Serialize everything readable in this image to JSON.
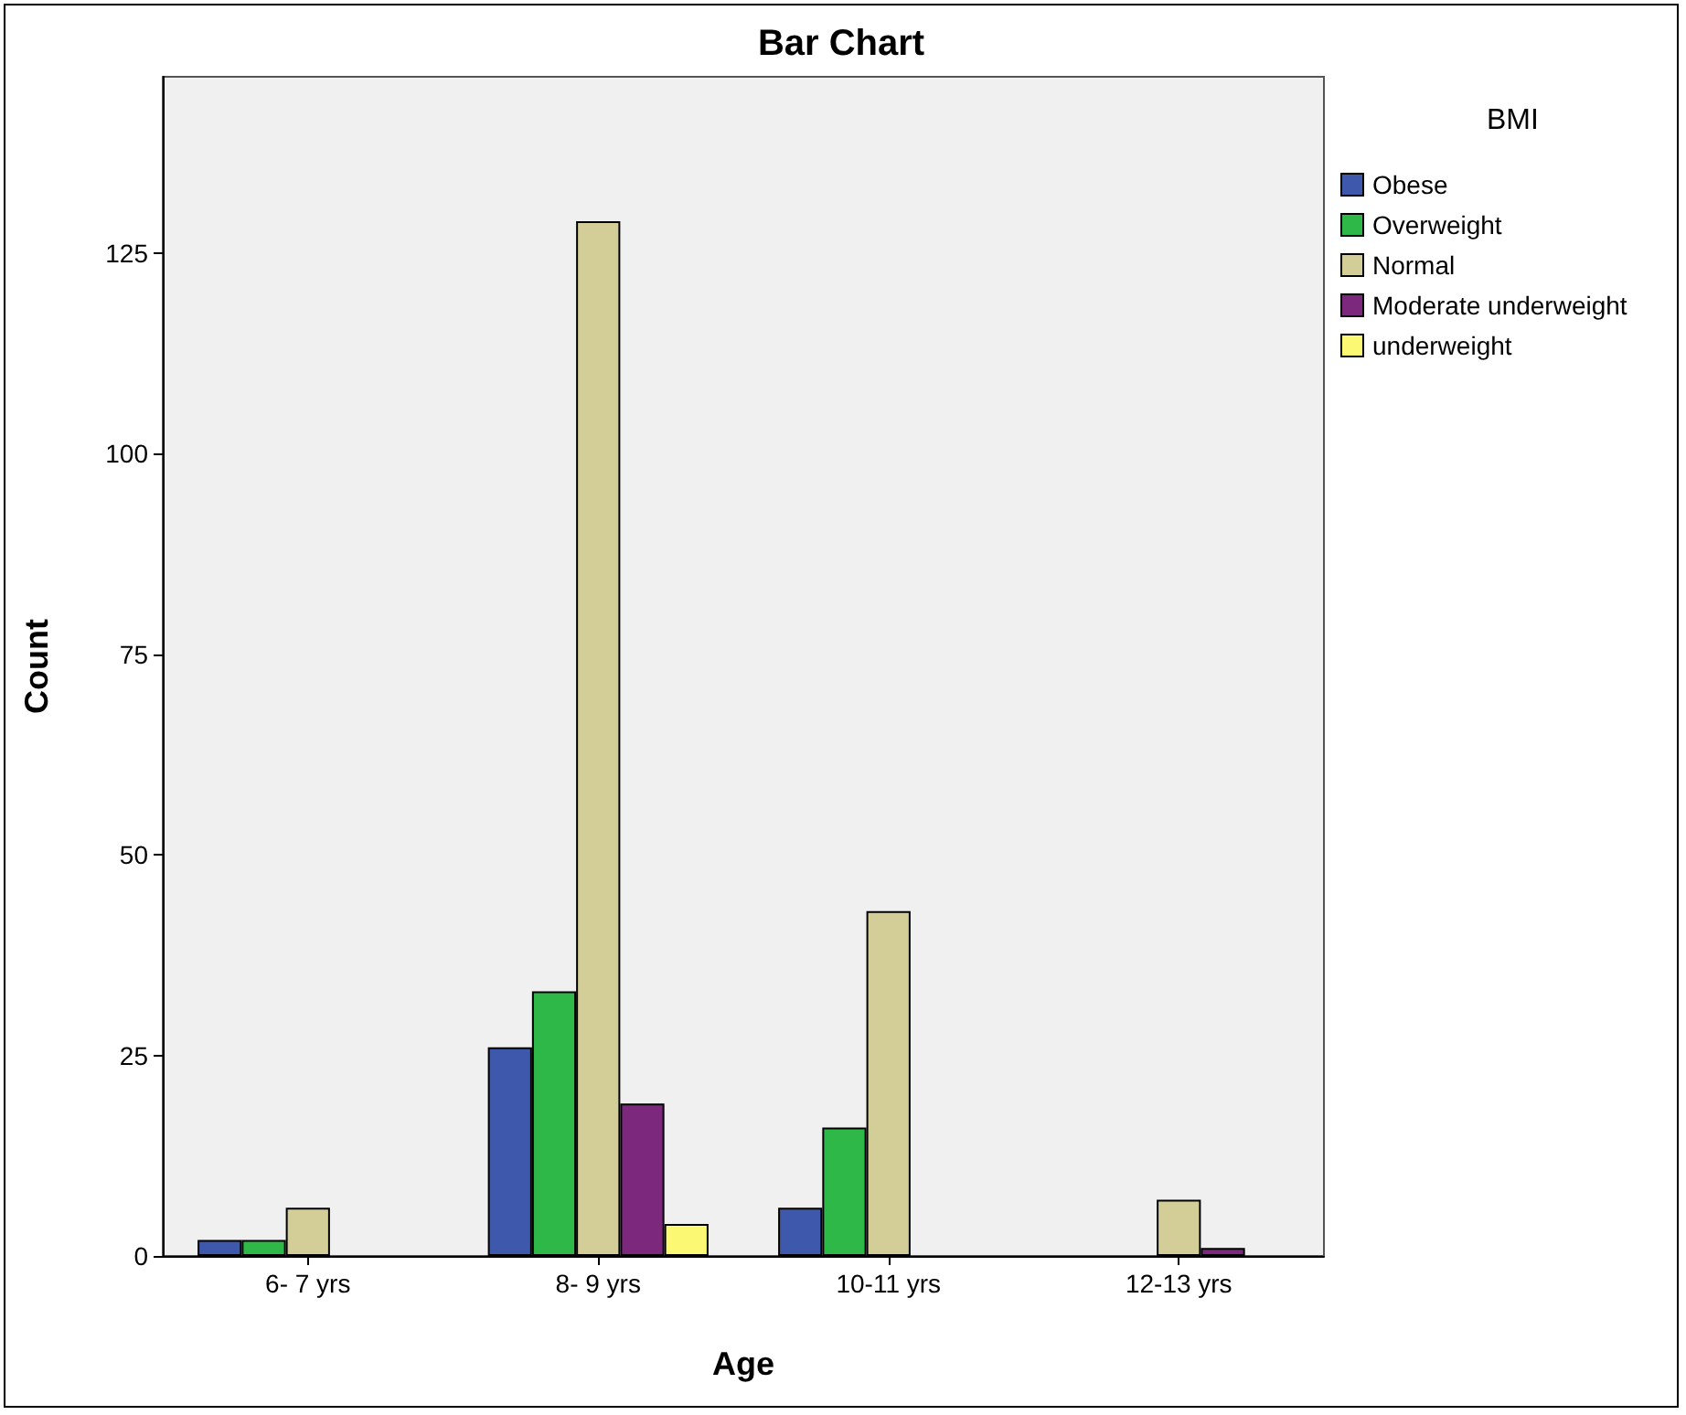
{
  "chart_data": {
    "type": "bar",
    "title": "Bar Chart",
    "xlabel": "Age",
    "ylabel": "Count",
    "legend_title": "BMI",
    "legend": "top right",
    "grid": false,
    "categories": [
      "6- 7 yrs",
      "8- 9 yrs",
      "10-11 yrs",
      "12-13 yrs"
    ],
    "ylim": [
      0,
      147
    ],
    "yticks": [
      0,
      25,
      50,
      75,
      100,
      125
    ],
    "series": [
      {
        "name": "Obese",
        "color": "#3e58ac",
        "values": [
          2,
          26,
          6,
          null
        ]
      },
      {
        "name": "Overweight",
        "color": "#2eb848",
        "values": [
          2,
          33,
          16,
          null
        ]
      },
      {
        "name": "Normal",
        "color": "#d3ce97",
        "values": [
          6,
          129,
          43,
          7
        ]
      },
      {
        "name": "Moderate underweight",
        "color": "#7c287d",
        "values": [
          null,
          19,
          null,
          1
        ]
      },
      {
        "name": "underweight",
        "color": "#fbf873",
        "values": [
          null,
          4,
          null,
          null
        ]
      }
    ]
  }
}
